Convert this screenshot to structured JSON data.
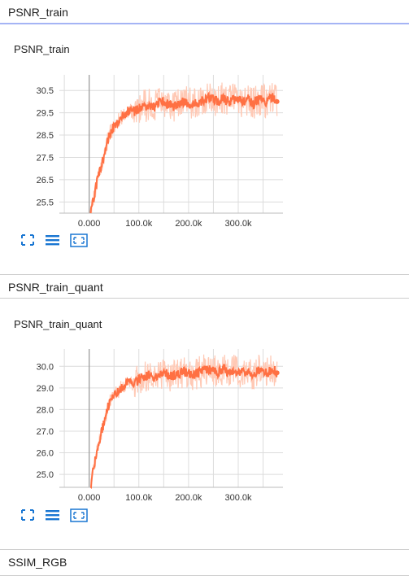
{
  "sections": [
    {
      "header": "PSNR_train",
      "card_title": "PSNR_train"
    },
    {
      "header": "PSNR_train_quant",
      "card_title": "PSNR_train_quant"
    },
    {
      "header": "SSIM_RGB"
    }
  ],
  "chart_data": [
    {
      "type": "line",
      "title": "PSNR_train",
      "x_ticks": [
        "0.000",
        "100.0k",
        "200.0k",
        "300.0k"
      ],
      "y_ticks": [
        "30.5",
        "29.5",
        "28.5",
        "27.5",
        "26.5",
        "25.5"
      ],
      "xlim": [
        -60000,
        390000
      ],
      "ylim": [
        25.0,
        31.2
      ],
      "series": [
        {
          "smoothing": "smoothed",
          "x": [
            3000,
            10000,
            20000,
            30000,
            40000,
            50000,
            60000,
            70000,
            80000,
            90000,
            100000,
            110000,
            120000,
            130000,
            140000,
            150000,
            160000,
            170000,
            180000,
            190000,
            200000,
            210000,
            220000,
            230000,
            240000,
            250000,
            260000,
            270000,
            280000,
            290000,
            300000,
            310000,
            320000,
            330000,
            340000,
            350000,
            360000,
            370000,
            378000
          ],
          "y": [
            25.0,
            25.8,
            26.8,
            27.6,
            28.5,
            28.9,
            29.2,
            29.4,
            29.6,
            29.55,
            29.7,
            29.8,
            29.85,
            29.75,
            29.9,
            29.95,
            29.85,
            29.8,
            29.9,
            30.0,
            29.95,
            29.85,
            29.95,
            30.05,
            30.15,
            30.1,
            30.0,
            30.2,
            29.95,
            30.1,
            30.05,
            30.0,
            30.15,
            29.9,
            30.1,
            30.05,
            30.0,
            30.2,
            30.0
          ]
        }
      ],
      "colors": {
        "line": "#ff7043",
        "raw": "#ffc9b5"
      },
      "grid": true
    },
    {
      "type": "line",
      "title": "PSNR_train_quant",
      "x_ticks": [
        "0.000",
        "100.0k",
        "200.0k",
        "300.0k"
      ],
      "y_ticks": [
        "30.0",
        "29.0",
        "28.0",
        "27.0",
        "26.0",
        "25.0"
      ],
      "xlim": [
        -60000,
        390000
      ],
      "ylim": [
        24.4,
        30.8
      ],
      "series": [
        {
          "smoothing": "smoothed",
          "x": [
            3000,
            10000,
            20000,
            30000,
            40000,
            50000,
            60000,
            70000,
            80000,
            90000,
            100000,
            110000,
            120000,
            130000,
            140000,
            150000,
            160000,
            170000,
            180000,
            190000,
            200000,
            210000,
            220000,
            230000,
            240000,
            250000,
            260000,
            270000,
            280000,
            290000,
            300000,
            310000,
            320000,
            330000,
            340000,
            350000,
            360000,
            370000,
            378000
          ],
          "y": [
            24.5,
            25.4,
            26.5,
            27.4,
            28.3,
            28.6,
            28.9,
            29.1,
            29.3,
            29.2,
            29.4,
            29.5,
            29.6,
            29.45,
            29.6,
            29.7,
            29.6,
            29.55,
            29.65,
            29.75,
            29.7,
            29.6,
            29.7,
            29.8,
            29.85,
            29.8,
            29.7,
            29.9,
            29.65,
            29.8,
            29.75,
            29.7,
            29.85,
            29.6,
            29.8,
            29.75,
            29.7,
            29.9,
            29.7
          ]
        }
      ],
      "colors": {
        "line": "#ff7043",
        "raw": "#ffc9b5"
      },
      "grid": true
    }
  ],
  "toolbar_icons": [
    "expand-icon",
    "lines-icon",
    "fit-domain-icon"
  ]
}
